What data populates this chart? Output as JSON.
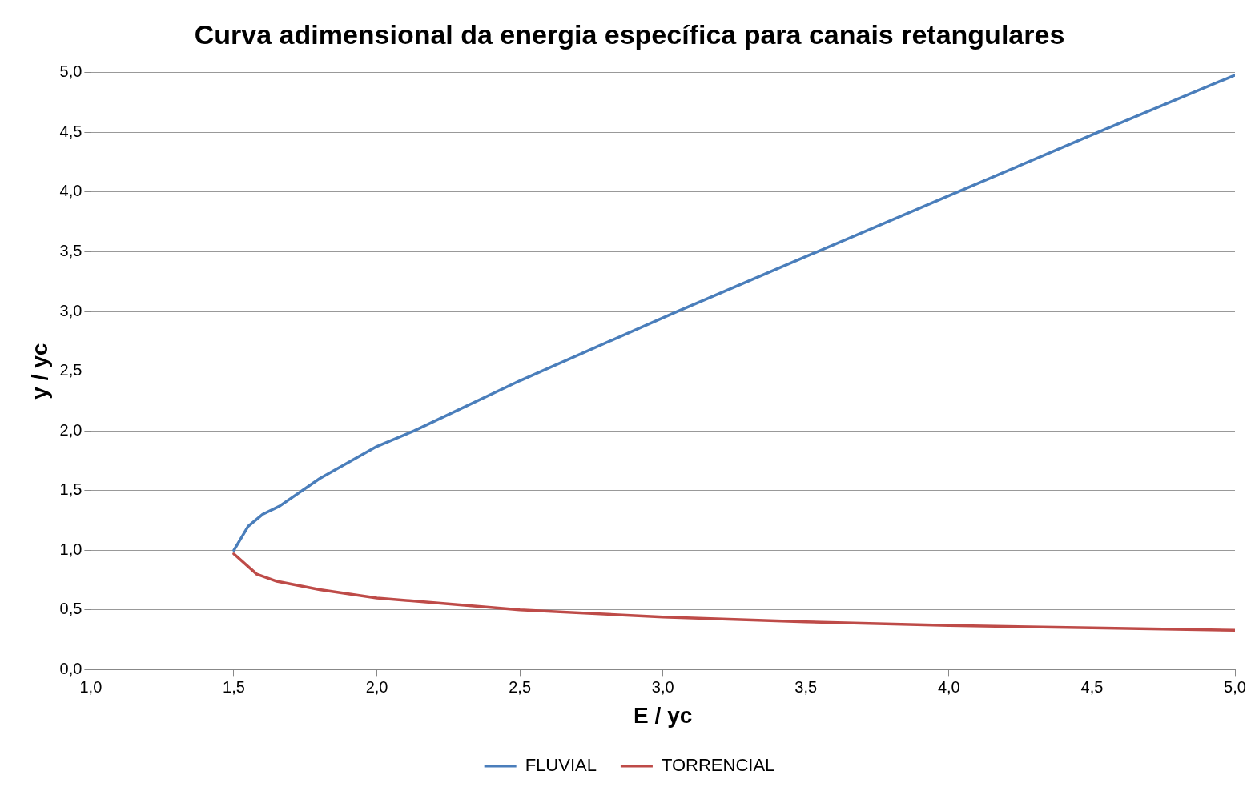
{
  "chart_data": {
    "type": "line",
    "title": "Curva adimensional da energia específica para canais retangulares",
    "xlabel": "E / yc",
    "ylabel": "y / yc",
    "xlim": [
      1.0,
      5.0
    ],
    "xticks": [
      {
        "value": 1.0,
        "label": "1,0"
      },
      {
        "value": 1.5,
        "label": "1,5"
      },
      {
        "value": 2.0,
        "label": "2,0"
      },
      {
        "value": 2.5,
        "label": "2,5"
      },
      {
        "value": 3.0,
        "label": "3,0"
      },
      {
        "value": 3.5,
        "label": "3,5"
      },
      {
        "value": 4.0,
        "label": "4,0"
      },
      {
        "value": 4.5,
        "label": "4,5"
      },
      {
        "value": 5.0,
        "label": "5,0"
      }
    ],
    "ylim": [
      0,
      5.0
    ],
    "yticks": [
      {
        "value": 0,
        "label": "0,0"
      },
      {
        "value": 0.5,
        "label": "0,5"
      },
      {
        "value": 1.0,
        "label": "1,0"
      },
      {
        "value": 1.5,
        "label": "1,5"
      },
      {
        "value": 2.0,
        "label": "2,0"
      },
      {
        "value": 2.5,
        "label": "2,5"
      },
      {
        "value": 3.0,
        "label": "3,0"
      },
      {
        "value": 3.5,
        "label": "3,5"
      },
      {
        "value": 4.0,
        "label": "4,0"
      },
      {
        "value": 4.5,
        "label": "4,5"
      },
      {
        "value": 5.0,
        "label": "5,0"
      }
    ],
    "grid": "y",
    "legend": "bottom",
    "marker": "none",
    "line_style": "solid",
    "series": [
      {
        "name": "FLUVIAL",
        "color": "#4a7ebb",
        "x": [
          1.5,
          1.55,
          1.6,
          1.66,
          1.8,
          2.0,
          2.13,
          2.5,
          3.05,
          3.5,
          4.0,
          4.5,
          5.0
        ],
        "values": [
          1.0,
          1.2,
          1.3,
          1.37,
          1.6,
          1.87,
          2.0,
          2.42,
          3.0,
          3.46,
          3.97,
          4.48,
          4.98
        ]
      },
      {
        "name": "TORRENCIAL",
        "color": "#be4b48",
        "x": [
          1.5,
          1.58,
          1.65,
          1.8,
          2.0,
          2.5,
          3.0,
          3.5,
          4.0,
          4.5,
          5.0
        ],
        "values": [
          0.97,
          0.8,
          0.74,
          0.67,
          0.6,
          0.5,
          0.44,
          0.4,
          0.37,
          0.35,
          0.33
        ]
      }
    ]
  }
}
